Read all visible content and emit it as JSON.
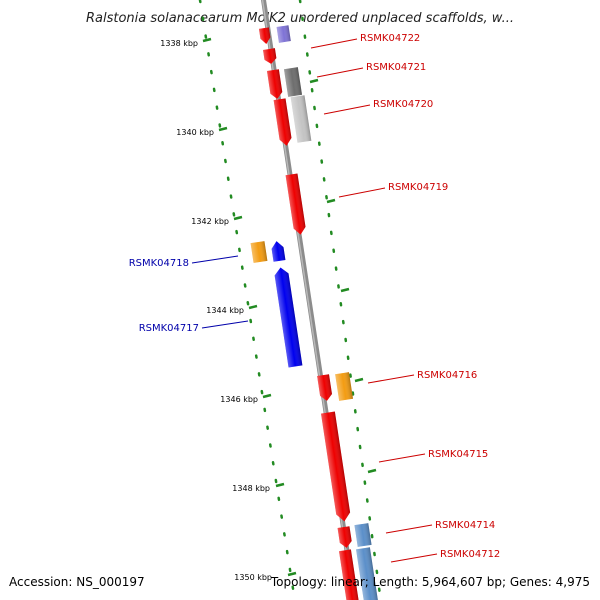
{
  "title": "Ralstonia solanacearum MolK2 unordered unplaced scaffolds, w...",
  "footer": {
    "accession": "Accession: NS_000197",
    "summary": "Topology: linear; Length: 5,964,607 bp; Genes: 4,975"
  },
  "ticks": [
    "1338 kbp",
    "1340 kbp",
    "1342 kbp",
    "1344 kbp",
    "1346 kbp",
    "1348 kbp",
    "1350 kbp"
  ],
  "gene_labels": [
    {
      "name": "RSMK04722",
      "strand": "forward"
    },
    {
      "name": "RSMK04721",
      "strand": "forward"
    },
    {
      "name": "RSMK04720",
      "strand": "forward"
    },
    {
      "name": "RSMK04719",
      "strand": "forward"
    },
    {
      "name": "RSMK04718",
      "strand": "reverse"
    },
    {
      "name": "RSMK04717",
      "strand": "reverse"
    },
    {
      "name": "RSMK04716",
      "strand": "forward"
    },
    {
      "name": "RSMK04715",
      "strand": "forward"
    },
    {
      "name": "RSMK04714",
      "strand": "forward"
    },
    {
      "name": "RSMK04712",
      "strand": "forward"
    }
  ],
  "colors": {
    "forward_gene": "#ee0000",
    "reverse_gene": "#0000ee",
    "forward_label": "#cc0000",
    "reverse_label": "#0000aa",
    "backbone": "#8c8c8c",
    "ruler_dots": "#228b22",
    "orange_feature": "#f39c12",
    "steel_feature": "#5b8fc9",
    "gray_feature": "#6e6e6e",
    "silver_feature": "#c4c4c4",
    "violet_feature": "#7f73d6"
  }
}
